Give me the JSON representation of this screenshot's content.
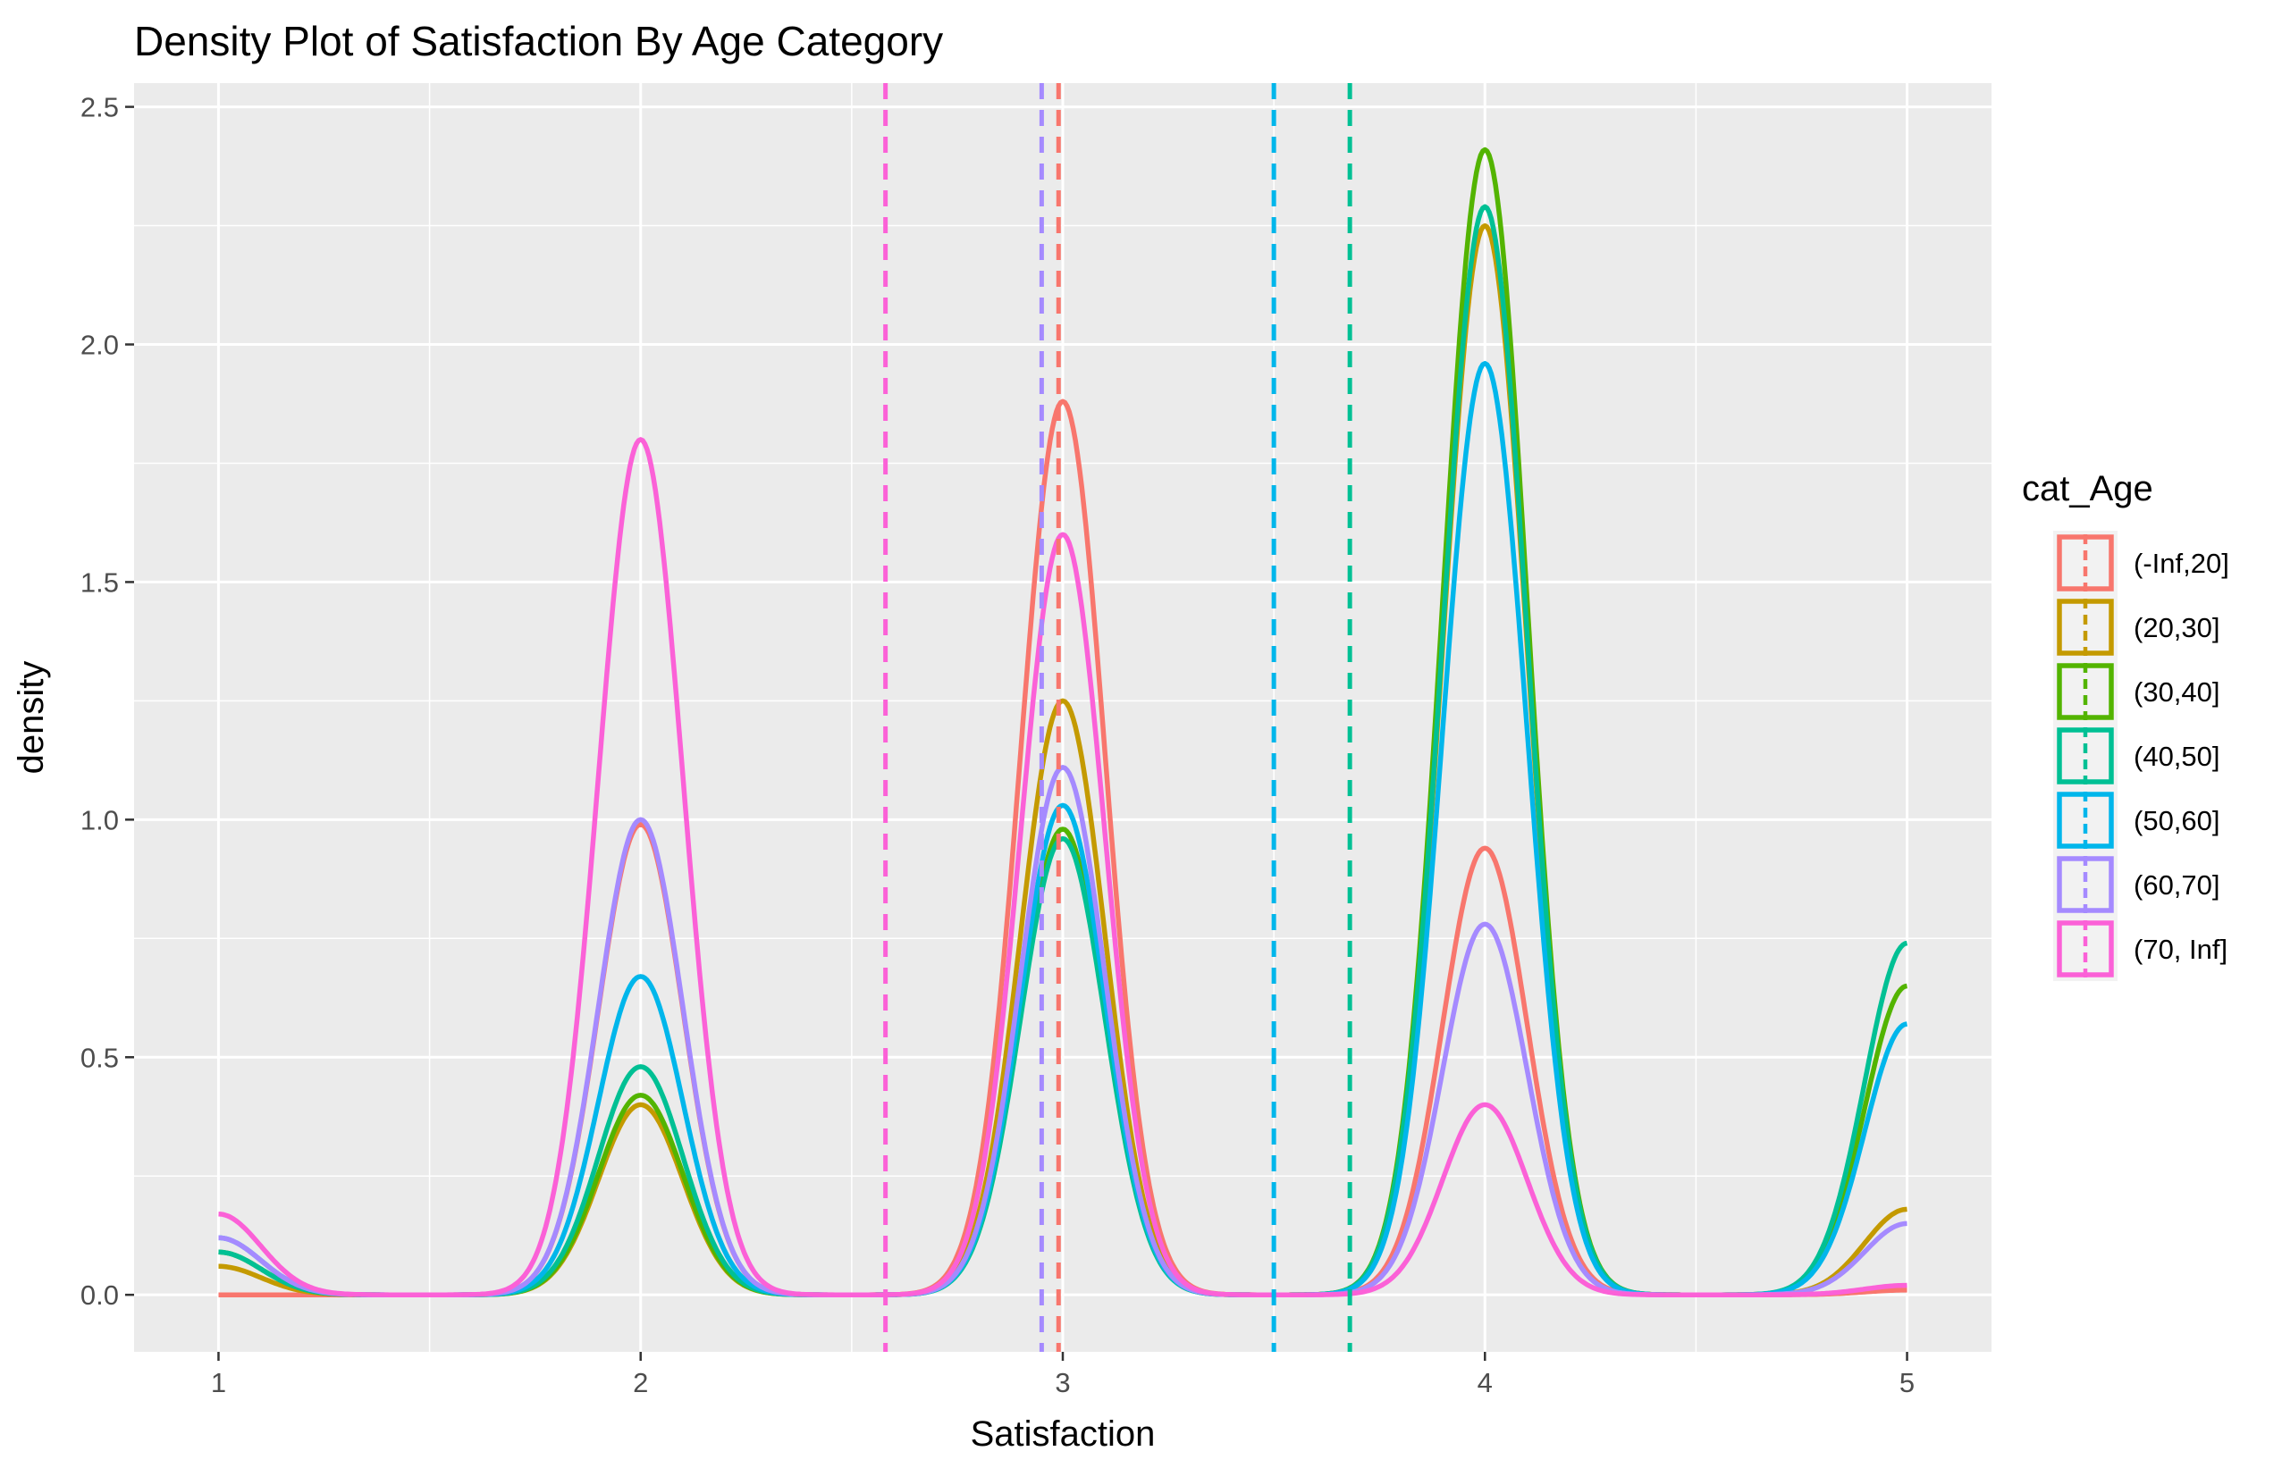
{
  "chart_data": {
    "type": "line",
    "title": "Density Plot of Satisfaction By Age Category",
    "xlabel": "Satisfaction",
    "ylabel": "density",
    "xlim": [
      0.8,
      5.2
    ],
    "ylim": [
      -0.12,
      2.55
    ],
    "x_ticks": [
      "1",
      "2",
      "3",
      "4",
      "5"
    ],
    "y_ticks": [
      "0.0",
      "0.5",
      "1.0",
      "1.5",
      "2.0",
      "2.5"
    ],
    "grid": true,
    "legend_title": "cat_Age",
    "legend_position": "right",
    "series": [
      {
        "name": "(-Inf,20]",
        "color": "#F8766D",
        "peaks": [
          0.0,
          0.99,
          1.88,
          0.94,
          0.01
        ],
        "mean_line": 2.99
      },
      {
        "name": "(20,30]",
        "color": "#C49A00",
        "peaks": [
          0.06,
          0.4,
          1.25,
          2.25,
          0.18
        ],
        "mean_line": null
      },
      {
        "name": "(30,40]",
        "color": "#53B400",
        "peaks": [
          0.09,
          0.42,
          0.98,
          2.41,
          0.65
        ],
        "mean_line": null
      },
      {
        "name": "(40,50]",
        "color": "#00C094",
        "peaks": [
          0.09,
          0.48,
          0.96,
          2.29,
          0.74
        ],
        "mean_line": 3.68
      },
      {
        "name": "(50,60]",
        "color": "#00B6EB",
        "peaks": [
          0.12,
          0.67,
          1.03,
          1.96,
          0.57
        ],
        "mean_line": 3.5
      },
      {
        "name": "(60,70]",
        "color": "#A58AFF",
        "peaks": [
          0.12,
          1.0,
          1.11,
          0.78,
          0.15
        ],
        "mean_line": 2.95
      },
      {
        "name": "(70, Inf]",
        "color": "#FB61D7",
        "peaks": [
          0.17,
          1.8,
          1.6,
          0.4,
          0.02
        ],
        "mean_line": 2.58
      }
    ]
  }
}
